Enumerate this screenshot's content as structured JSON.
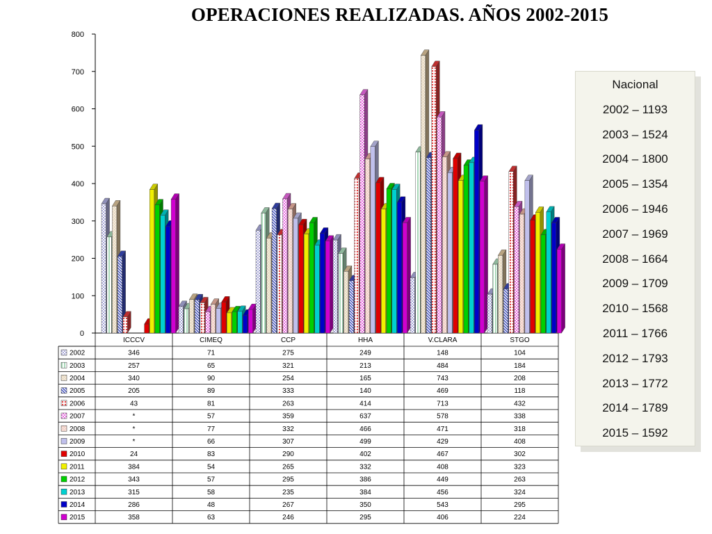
{
  "title": "OPERACIONES REALIZADAS. AÑOS 2002-2015",
  "chart_data": {
    "type": "bar",
    "categories": [
      "ICCCV",
      "CIMEQ",
      "CCP",
      "HHA",
      "V.CLARA",
      "STGO"
    ],
    "ylim": [
      0,
      800
    ],
    "yticks": [
      "0",
      "100",
      "200",
      "300",
      "400",
      "500",
      "600",
      "700",
      "800"
    ],
    "grid": false,
    "series": [
      {
        "name": "2002",
        "color": "#a8a8d8",
        "pattern": "checker",
        "values": [
          346,
          71,
          275,
          249,
          148,
          104
        ],
        "labels": [
          "346",
          "71",
          "275",
          "249",
          "148",
          "104"
        ]
      },
      {
        "name": "2003",
        "color": "#a8d8b8",
        "pattern": "vstripe",
        "values": [
          257,
          65,
          321,
          213,
          484,
          184
        ],
        "labels": [
          "257",
          "65",
          "321",
          "213",
          "484",
          "184"
        ]
      },
      {
        "name": "2004",
        "color": "#d8c098",
        "pattern": "hatch",
        "values": [
          340,
          90,
          254,
          165,
          743,
          208
        ],
        "labels": [
          "340",
          "90",
          "254",
          "165",
          "743",
          "208"
        ]
      },
      {
        "name": "2005",
        "color": "#3848b8",
        "pattern": "diag",
        "values": [
          205,
          89,
          333,
          140,
          469,
          118
        ],
        "labels": [
          "205",
          "89",
          "333",
          "140",
          "469",
          "118"
        ]
      },
      {
        "name": "2006",
        "color": "#e03838",
        "pattern": "dots",
        "values": [
          43,
          81,
          263,
          414,
          713,
          432
        ],
        "labels": [
          "43",
          "81",
          "263",
          "414",
          "713",
          "432"
        ]
      },
      {
        "name": "2007",
        "color": "#e868e0",
        "pattern": "checker",
        "values": [
          null,
          57,
          359,
          637,
          578,
          338
        ],
        "labels": [
          "*",
          "57",
          "359",
          "637",
          "578",
          "338"
        ]
      },
      {
        "name": "2008",
        "color": "#e8b0a0",
        "pattern": "hatch",
        "values": [
          null,
          77,
          332,
          466,
          471,
          318
        ],
        "labels": [
          "*",
          "77",
          "332",
          "466",
          "471",
          "318"
        ]
      },
      {
        "name": "2009",
        "color": "#c0c0ec",
        "pattern": "plain",
        "values": [
          null,
          66,
          307,
          499,
          429,
          408
        ],
        "labels": [
          "*",
          "66",
          "307",
          "499",
          "429",
          "408"
        ]
      },
      {
        "name": "2010",
        "color": "#e00000",
        "pattern": "plain",
        "values": [
          24,
          83,
          290,
          402,
          467,
          302
        ],
        "labels": [
          "24",
          "83",
          "290",
          "402",
          "467",
          "302"
        ]
      },
      {
        "name": "2011",
        "color": "#f0f000",
        "pattern": "plain",
        "values": [
          384,
          54,
          265,
          332,
          408,
          323
        ],
        "labels": [
          "384",
          "54",
          "265",
          "332",
          "408",
          "323"
        ]
      },
      {
        "name": "2012",
        "color": "#00d000",
        "pattern": "plain",
        "values": [
          343,
          57,
          295,
          386,
          449,
          263
        ],
        "labels": [
          "343",
          "57",
          "295",
          "386",
          "449",
          "263"
        ]
      },
      {
        "name": "2013",
        "color": "#00d0d0",
        "pattern": "plain",
        "values": [
          315,
          58,
          235,
          384,
          456,
          324
        ],
        "labels": [
          "315",
          "58",
          "235",
          "384",
          "456",
          "324"
        ]
      },
      {
        "name": "2014",
        "color": "#0000c8",
        "pattern": "plain",
        "values": [
          286,
          48,
          267,
          350,
          543,
          295
        ],
        "labels": [
          "286",
          "48",
          "267",
          "350",
          "543",
          "295"
        ]
      },
      {
        "name": "2015",
        "color": "#d000d0",
        "pattern": "plain",
        "values": [
          358,
          63,
          246,
          295,
          406,
          224
        ],
        "labels": [
          "358",
          "63",
          "246",
          "295",
          "406",
          "224"
        ]
      }
    ]
  },
  "national": {
    "header": "Nacional",
    "items": [
      "2002 – 1193",
      "2003 – 1524",
      "2004 – 1800",
      "2005 – 1354",
      "2006 – 1946",
      "2007 – 1969",
      "2008 – 1664",
      "2009 – 1709",
      "2010 – 1568",
      "2011 – 1766",
      "2012 – 1793",
      "2013 – 1772",
      "2014 – 1789",
      "2015 – 1592"
    ]
  }
}
